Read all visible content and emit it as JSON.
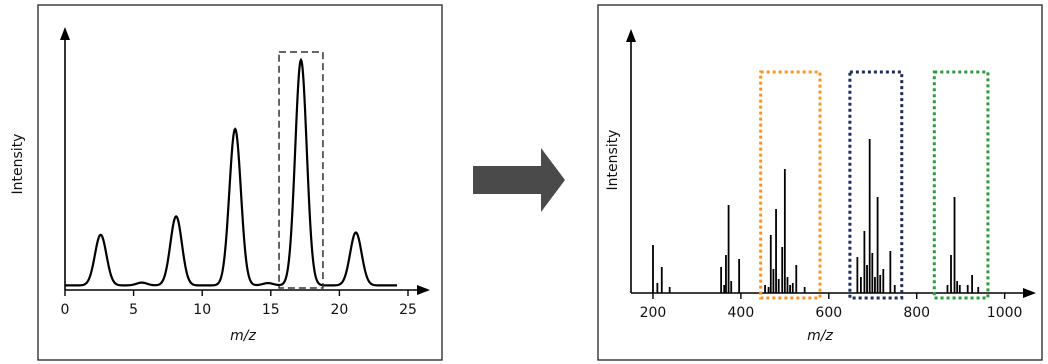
{
  "left_panel": {
    "ylabel": "Intensity",
    "xlabel": "m/z",
    "x_ticks": [
      "0",
      "5",
      "10",
      "15",
      "20",
      "25"
    ]
  },
  "right_panel": {
    "ylabel": "Intensity",
    "xlabel": "m/z",
    "x_ticks": [
      "200",
      "400",
      "600",
      "800",
      "1000"
    ]
  },
  "colors": {
    "line": "#000000",
    "arrow": "#4a4a4a",
    "box_left": "#333333",
    "box_orange": "#f0962a",
    "box_navy": "#1f2d5a",
    "box_green": "#2a9a3a"
  },
  "chart_data": [
    {
      "type": "line",
      "xlabel": "m/z",
      "ylabel": "Intensity",
      "xlim": [
        0,
        25
      ],
      "ylim": [
        0,
        100
      ],
      "baseline": 2,
      "peaks": [
        {
          "x": 2.6,
          "height": 22
        },
        {
          "x": 8.1,
          "height": 30
        },
        {
          "x": 12.4,
          "height": 68
        },
        {
          "x": 17.2,
          "height": 98
        },
        {
          "x": 21.2,
          "height": 23
        }
      ],
      "highlight_range": [
        15.6,
        18.8
      ],
      "x_ticks": [
        0,
        5,
        10,
        15,
        20,
        25
      ],
      "grid": false
    },
    {
      "type": "bar",
      "xlabel": "m/z",
      "ylabel": "Intensity",
      "xlim": [
        150,
        1060
      ],
      "ylim": [
        0,
        100
      ],
      "peaks": [
        {
          "x": 200,
          "y": 24
        },
        {
          "x": 210,
          "y": 5
        },
        {
          "x": 220,
          "y": 13
        },
        {
          "x": 238,
          "y": 3
        },
        {
          "x": 355,
          "y": 13
        },
        {
          "x": 362,
          "y": 4
        },
        {
          "x": 366,
          "y": 19
        },
        {
          "x": 372,
          "y": 44
        },
        {
          "x": 378,
          "y": 6
        },
        {
          "x": 396,
          "y": 17
        },
        {
          "x": 455,
          "y": 4
        },
        {
          "x": 463,
          "y": 3
        },
        {
          "x": 468,
          "y": 29
        },
        {
          "x": 474,
          "y": 12
        },
        {
          "x": 480,
          "y": 42
        },
        {
          "x": 486,
          "y": 7
        },
        {
          "x": 494,
          "y": 23
        },
        {
          "x": 500,
          "y": 62
        },
        {
          "x": 506,
          "y": 8
        },
        {
          "x": 512,
          "y": 4
        },
        {
          "x": 518,
          "y": 5
        },
        {
          "x": 526,
          "y": 14
        },
        {
          "x": 545,
          "y": 3
        },
        {
          "x": 665,
          "y": 18
        },
        {
          "x": 673,
          "y": 8
        },
        {
          "x": 681,
          "y": 31
        },
        {
          "x": 687,
          "y": 14
        },
        {
          "x": 693,
          "y": 77
        },
        {
          "x": 699,
          "y": 20
        },
        {
          "x": 705,
          "y": 8
        },
        {
          "x": 711,
          "y": 48
        },
        {
          "x": 717,
          "y": 9
        },
        {
          "x": 724,
          "y": 12
        },
        {
          "x": 740,
          "y": 21
        },
        {
          "x": 750,
          "y": 4
        },
        {
          "x": 870,
          "y": 4
        },
        {
          "x": 878,
          "y": 19
        },
        {
          "x": 886,
          "y": 48
        },
        {
          "x": 892,
          "y": 6
        },
        {
          "x": 898,
          "y": 4
        },
        {
          "x": 916,
          "y": 4
        },
        {
          "x": 926,
          "y": 9
        },
        {
          "x": 940,
          "y": 3
        }
      ],
      "highlight_ranges": [
        {
          "range": [
            445,
            580
          ],
          "color": "#f0962a"
        },
        {
          "range": [
            648,
            766
          ],
          "color": "#1f2d5a"
        },
        {
          "range": [
            840,
            962
          ],
          "color": "#2a9a3a"
        }
      ],
      "x_ticks": [
        200,
        400,
        600,
        800,
        1000
      ],
      "grid": false
    }
  ]
}
